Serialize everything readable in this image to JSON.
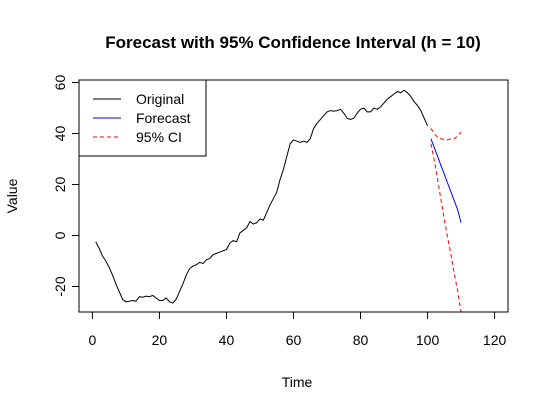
{
  "chart_data": {
    "type": "line",
    "title": "Forecast with 95% Confidence Interval (h = 10)",
    "xlabel": "Time",
    "ylabel": "Value",
    "xlim": [
      -4,
      124
    ],
    "ylim": [
      -30,
      61
    ],
    "x_ticks": [
      0,
      20,
      40,
      60,
      80,
      100,
      120
    ],
    "y_ticks": [
      -20,
      0,
      20,
      40,
      60
    ],
    "legend": {
      "position": "top-left",
      "entries": [
        {
          "label": "Original",
          "color": "#000000",
          "dash": "solid"
        },
        {
          "label": "Forecast",
          "color": "#0000ff",
          "dash": "solid"
        },
        {
          "label": "95% CI",
          "color": "#ff0000",
          "dash": "dashed"
        }
      ]
    },
    "series": [
      {
        "name": "Original",
        "color": "#000000",
        "x": [
          1,
          2,
          3,
          4,
          5,
          6,
          7,
          8,
          9,
          10,
          11,
          12,
          13,
          14,
          15,
          16,
          17,
          18,
          19,
          20,
          21,
          22,
          23,
          24,
          25,
          26,
          27,
          28,
          29,
          30,
          31,
          32,
          33,
          34,
          35,
          36,
          37,
          38,
          39,
          40,
          41,
          42,
          43,
          44,
          45,
          46,
          47,
          48,
          49,
          50,
          51,
          52,
          53,
          54,
          55,
          56,
          57,
          58,
          59,
          60,
          61,
          62,
          63,
          64,
          65,
          66,
          67,
          68,
          69,
          70,
          71,
          72,
          73,
          74,
          75,
          76,
          77,
          78,
          79,
          80,
          81,
          82,
          83,
          84,
          85,
          86,
          87,
          88,
          89,
          90,
          91,
          92,
          93,
          94,
          95,
          96,
          97,
          98,
          99,
          100
        ],
        "y": [
          -2.5,
          -5,
          -8,
          -10,
          -12.5,
          -15.5,
          -19,
          -22,
          -25,
          -26,
          -25.8,
          -25.5,
          -25.8,
          -24,
          -24.2,
          -23.8,
          -24,
          -23.5,
          -24.5,
          -25.5,
          -25.5,
          -24.5,
          -26,
          -26.5,
          -25,
          -22,
          -19,
          -15.5,
          -13,
          -12,
          -11.5,
          -10.5,
          -11,
          -9.5,
          -9,
          -7.5,
          -7,
          -6.5,
          -6,
          -5.5,
          -3,
          -2,
          -2.5,
          1,
          2,
          3,
          5.5,
          4.5,
          5,
          6.5,
          6,
          9,
          12,
          14.5,
          17,
          22,
          26,
          31,
          36,
          37.5,
          37,
          36.5,
          37,
          36.5,
          38,
          42,
          44,
          45.5,
          47,
          48.5,
          49,
          48.8,
          49,
          49.5,
          48,
          46,
          45.5,
          46,
          48,
          49.5,
          50,
          48.5,
          48.5,
          50,
          49.5,
          50.5,
          52,
          53.5,
          54.5,
          55.5,
          56.5,
          56,
          57,
          56,
          54.5,
          52.5,
          51,
          49,
          46,
          43
        ]
      },
      {
        "name": "Forecast",
        "color": "#0000ff",
        "x": [
          101,
          102,
          103,
          104,
          105,
          106,
          107,
          108,
          109,
          110
        ],
        "y": [
          38,
          34.5,
          31,
          27.5,
          24,
          20.5,
          17,
          13.5,
          10,
          5
        ]
      },
      {
        "name": "95% CI",
        "color": "#ff0000",
        "x": [
          101,
          102,
          103,
          104,
          105,
          106,
          107,
          108,
          109,
          110
        ],
        "y": [
          42,
          40,
          38.5,
          38,
          37.5,
          37.5,
          38,
          38,
          39,
          40.5
        ]
      },
      {
        "name": "95% CI",
        "color": "#ff0000",
        "x": [
          101,
          102,
          103,
          104,
          105,
          106,
          107,
          108,
          109,
          110
        ],
        "y": [
          36,
          29.5,
          22,
          14,
          6.5,
          -1,
          -7.5,
          -15,
          -22,
          -30
        ]
      }
    ]
  }
}
